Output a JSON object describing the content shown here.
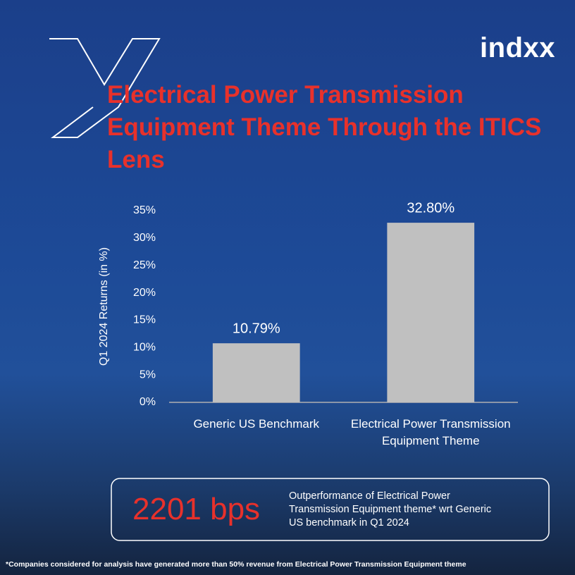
{
  "brand": "indxx",
  "chart_data": {
    "type": "bar",
    "title": "Electrical Power Transmission Equipment Theme Through the ITICS Lens",
    "y_label": "Q1 2024 Returns (in %)",
    "categories": [
      "Generic US Benchmark",
      "Electrical Power Transmission Equipment Theme"
    ],
    "values": [
      10.79,
      32.8
    ],
    "value_labels": [
      "10.79%",
      "32.80%"
    ],
    "color": "#c0c0c0",
    "ylim": [
      0,
      35
    ],
    "yticks": [
      {
        "value": 0,
        "label": "0%"
      },
      {
        "value": 5,
        "label": "5%"
      },
      {
        "value": 10,
        "label": "10%"
      },
      {
        "value": 15,
        "label": "15%"
      },
      {
        "value": 20,
        "label": "20%"
      },
      {
        "value": 25,
        "label": "25%"
      },
      {
        "value": 30,
        "label": "30%"
      },
      {
        "value": 35,
        "label": "35%"
      }
    ],
    "grid": false
  },
  "callout": {
    "value_text": "2201 bps",
    "text": "Outperformance of Electrical Power Transmission Equipment theme* wrt Generic US benchmark in Q1 2024"
  },
  "footnote": "*Companies considered for analysis have generated more than 50% revenue from Electrical Power Transmission Equipment theme"
}
